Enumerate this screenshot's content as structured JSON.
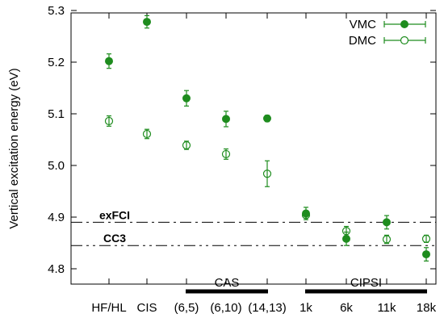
{
  "chart_data": {
    "type": "scatter",
    "ylabel": "Vertical excitation energy (eV)",
    "ylim": [
      4.75,
      5.3
    ],
    "yticks": [
      "4.8",
      "4.9",
      "5.0",
      "5.1",
      "5.2",
      "5.3"
    ],
    "categories": [
      "HF/HL",
      "CIS",
      "(6,5)",
      "(6,10)",
      "(14,13)",
      "1k",
      "6k",
      "11k",
      "18k"
    ],
    "series": [
      {
        "name": "VMC",
        "marker": "filled-circle",
        "color": "#1e8c1e",
        "values": [
          5.202,
          5.278,
          5.13,
          5.09,
          5.091,
          4.907,
          4.858,
          4.89,
          4.828
        ],
        "errors": [
          0.014,
          0.012,
          0.015,
          0.015,
          0.006,
          0.012,
          0.013,
          0.013,
          0.013
        ]
      },
      {
        "name": "DMC",
        "marker": "open-circle",
        "color": "#1e8c1e",
        "values": [
          5.086,
          5.061,
          5.039,
          5.022,
          4.984,
          4.904,
          4.873,
          4.857,
          4.858
        ],
        "errors": [
          0.01,
          0.009,
          0.008,
          0.01,
          0.025,
          0.006,
          0.009,
          0.008,
          0.007
        ]
      }
    ],
    "reference_lines": [
      {
        "label": "exFCI",
        "value": 4.89
      },
      {
        "label": "CC3",
        "value": 4.845
      }
    ],
    "groups": [
      {
        "label": "CAS",
        "from": "(6,5)",
        "to": "(14,13)"
      },
      {
        "label": "CIPSI",
        "from": "1k",
        "to": "18k"
      }
    ],
    "legend_position": "top-right",
    "grid": false
  }
}
